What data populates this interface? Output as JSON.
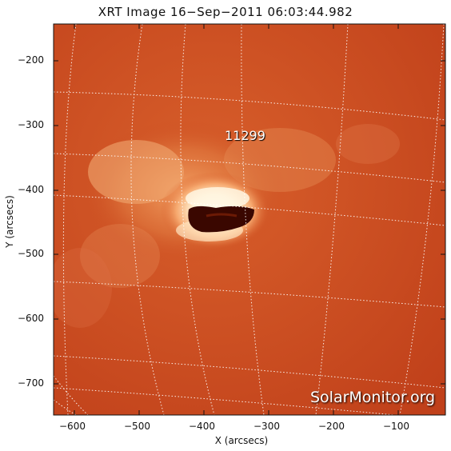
{
  "title": "XRT Image 16−Sep−2011 06:03:44.982",
  "xlabel": "X (arcsecs)",
  "ylabel": "Y (arcsecs)",
  "x_ticks": [
    "−600",
    "−500",
    "−400",
    "−300",
    "−200",
    "−100"
  ],
  "y_ticks": [
    "−200",
    "−300",
    "−400",
    "−500",
    "−600",
    "−700"
  ],
  "region_label": "11299",
  "watermark": "SolarMonitor.org",
  "colors": {
    "background": "#c8471c",
    "bright": "#fff3d6",
    "grid": "#ffffff",
    "dark_core": "#3a0700"
  }
}
